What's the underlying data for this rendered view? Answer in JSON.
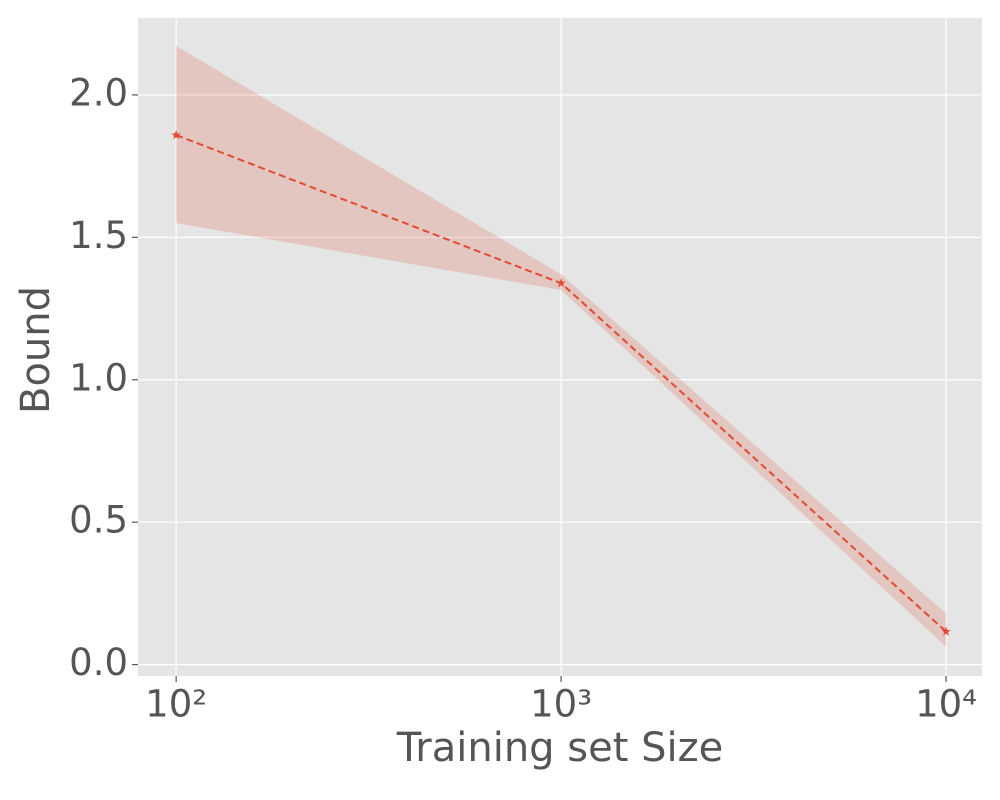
{
  "chart_data": {
    "type": "line",
    "xlabel": "Training set Size",
    "ylabel": "Bound",
    "xscale": "log",
    "x": [
      100,
      1000,
      10000
    ],
    "series": [
      {
        "color": "#E24A33",
        "values": [
          1.859,
          1.339,
          0.116
        ],
        "upper": [
          2.172,
          1.37,
          0.179
        ],
        "lower": [
          1.55,
          1.315,
          0.063
        ]
      }
    ],
    "xlim": [
      79.6,
      12400
    ],
    "ylim": [
      -0.04,
      2.27
    ],
    "xticks": [
      {
        "value": 100,
        "label": "10²"
      },
      {
        "value": 1000,
        "label": "10³"
      },
      {
        "value": 10000,
        "label": "10⁴"
      }
    ],
    "yticks": [
      {
        "value": 0,
        "label": "0.0"
      },
      {
        "value": 0.5,
        "label": "0.5"
      },
      {
        "value": 1,
        "label": "1.0"
      },
      {
        "value": 1.5,
        "label": "1.5"
      },
      {
        "value": 2,
        "label": "2.0"
      }
    ],
    "grid": true
  }
}
